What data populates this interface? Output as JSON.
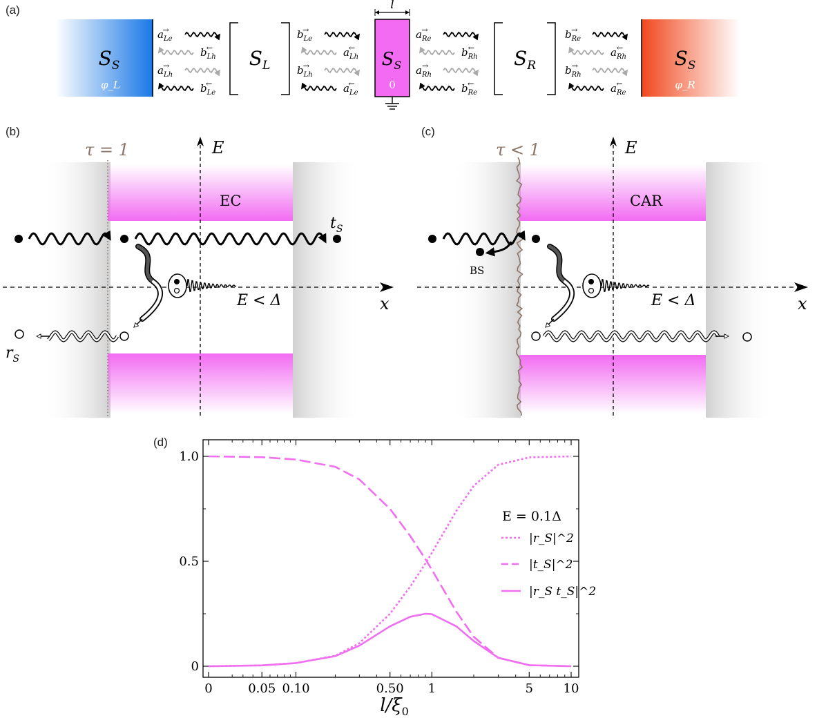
{
  "panel_labels": {
    "a": "(a)",
    "b": "(b)",
    "c": "(c)",
    "d": "(d)"
  },
  "panel_a": {
    "length_label": "l",
    "blocks": {
      "left_sc": {
        "label": "S",
        "sub": "S",
        "phase": "φ_L",
        "color": "#1877e6"
      },
      "scatter_left": {
        "label": "S",
        "sub": "L"
      },
      "center_sc": {
        "label": "S",
        "sub": "S",
        "phase": "0",
        "color": "#f26bf2"
      },
      "scatter_right": {
        "label": "S",
        "sub": "R"
      },
      "right_sc": {
        "label": "S",
        "sub": "S",
        "phase": "φ_R",
        "color": "#f0481e"
      }
    },
    "mode_labels": {
      "g1": [
        [
          "a",
          "Le",
          "→"
        ],
        [
          "b",
          "Lh",
          "←"
        ],
        [
          "a",
          "Lh",
          "→"
        ],
        [
          "b",
          "Le",
          "←"
        ]
      ],
      "g2": [
        [
          "b",
          "Le",
          "→"
        ],
        [
          "a",
          "Lh",
          "←"
        ],
        [
          "b",
          "Lh",
          "→"
        ],
        [
          "a",
          "Le",
          "←"
        ]
      ],
      "g3": [
        [
          "a",
          "Re",
          "→"
        ],
        [
          "b",
          "Rh",
          "←"
        ],
        [
          "a",
          "Rh",
          "→"
        ],
        [
          "b",
          "Re",
          "←"
        ]
      ],
      "g4": [
        [
          "b",
          "Re",
          "→"
        ],
        [
          "a",
          "Rh",
          "←"
        ],
        [
          "b",
          "Rh",
          "→"
        ],
        [
          "a",
          "Re",
          "←"
        ]
      ]
    }
  },
  "panel_b": {
    "tau_label": "τ = 1",
    "axis_e": "E",
    "axis_x": "x",
    "band_label": "EC",
    "transmission_label": "t",
    "transmission_sub": "S",
    "reflection_label": "r",
    "reflection_sub": "S",
    "energy_condition": "E < Δ"
  },
  "panel_c": {
    "tau_label": "τ < 1",
    "axis_e": "E",
    "axis_x": "x",
    "band_label": "CAR",
    "bs_label": "BS",
    "energy_condition": "E < Δ"
  },
  "chart_data": {
    "type": "line",
    "xlabel": "l/ξ0",
    "ylabel": "",
    "x_ticks": [
      "0",
      "0.05",
      "0.10",
      "0.50",
      "1",
      "5",
      "10"
    ],
    "y_ticks": [
      "0",
      "0.5",
      "1.0"
    ],
    "ylim": [
      0,
      1
    ],
    "legend_title": "E = 0.1Δ",
    "legend_position": "right",
    "series_color": "#f06ef0",
    "series": [
      {
        "name": "|r_S|^2",
        "dash": "dotted",
        "x": [
          0,
          0.05,
          0.1,
          0.2,
          0.3,
          0.5,
          0.7,
          0.9,
          1,
          1.5,
          2,
          3,
          5,
          10
        ],
        "values": [
          0,
          0.004,
          0.015,
          0.05,
          0.11,
          0.25,
          0.38,
          0.49,
          0.54,
          0.74,
          0.86,
          0.96,
          0.995,
          1.0
        ]
      },
      {
        "name": "|t_S|^2",
        "dash": "dashed",
        "x": [
          0,
          0.05,
          0.1,
          0.2,
          0.3,
          0.5,
          0.7,
          0.9,
          1,
          1.5,
          2,
          3,
          5,
          10
        ],
        "values": [
          1.0,
          0.996,
          0.985,
          0.95,
          0.89,
          0.75,
          0.62,
          0.51,
          0.46,
          0.26,
          0.14,
          0.04,
          0.005,
          0
        ]
      },
      {
        "name": "|r_S t_S|^2",
        "dash": "solid",
        "x": [
          0,
          0.05,
          0.1,
          0.2,
          0.3,
          0.5,
          0.7,
          0.9,
          1,
          1.5,
          2,
          3,
          5,
          10
        ],
        "values": [
          0,
          0.004,
          0.015,
          0.048,
          0.098,
          0.19,
          0.236,
          0.25,
          0.248,
          0.19,
          0.12,
          0.04,
          0.005,
          0
        ]
      }
    ]
  }
}
